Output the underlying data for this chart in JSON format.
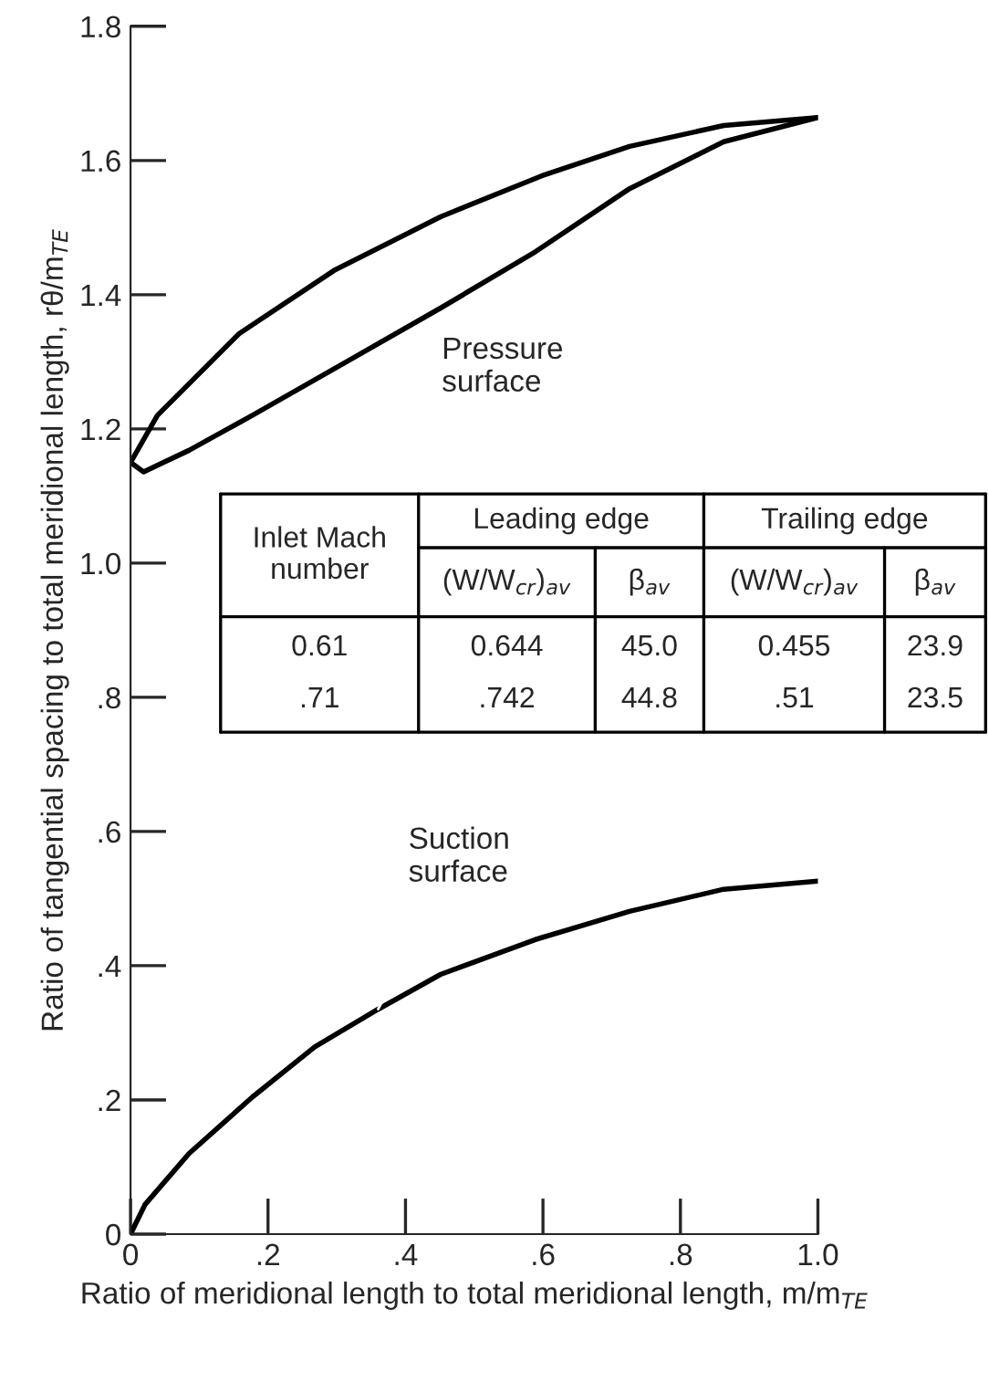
{
  "chart_data": {
    "type": "line",
    "xlabel": "Ratio of meridional length to total meridional length, m/m$_{TE}$",
    "ylabel": "Ratio of tangential spacing to total meridional length, rθ/m$_{TE}$",
    "series": [
      {
        "color": "#000000",
        "x": [
          0,
          0.039,
          0.158,
          0.296,
          0.451,
          0.598,
          0.726,
          0.863,
          1.0
        ],
        "values": [
          1.15,
          1.22,
          1.342,
          1.436,
          1.516,
          1.577,
          1.621,
          1.652,
          1.664
        ]
      },
      {
        "color": "#000000",
        "x": [
          0,
          0.019,
          0.085,
          0.177,
          0.314,
          0.451,
          0.589,
          0.726,
          0.863,
          1.0
        ],
        "values": [
          1.15,
          1.136,
          1.168,
          1.22,
          1.3,
          1.38,
          1.464,
          1.558,
          1.628,
          1.664
        ]
      },
      {
        "color": "#000000",
        "x": [
          0,
          0.021,
          0.085,
          0.177,
          0.268,
          0.36,
          0.451,
          0.589,
          0.726,
          0.863,
          1.0
        ],
        "values": [
          0,
          0.044,
          0.12,
          0.204,
          0.279,
          0.335,
          0.387,
          0.439,
          0.481,
          0.514,
          0.526
        ]
      }
    ],
    "xlim": [
      0,
      1.0
    ],
    "ylim": [
      0,
      1.8
    ],
    "xticks": [
      0,
      {
        "value": 0.2,
        "label": ".2"
      },
      {
        "value": 0.4,
        "label": ".4"
      },
      {
        "value": 0.6,
        "label": ".6"
      },
      {
        "value": 0.8,
        "label": ".8"
      },
      {
        "value": 1.0,
        "label": "1.0"
      }
    ],
    "yticks": [
      0,
      {
        "value": 0.2,
        "label": ".2"
      },
      {
        "value": 0.4,
        "label": ".4"
      },
      {
        "value": 0.6,
        "label": ".6"
      },
      {
        "value": 0.8,
        "label": ".8"
      },
      {
        "value": 1.0,
        "label": "1.0"
      },
      {
        "value": 1.2,
        "label": "1.2"
      },
      {
        "value": 1.4,
        "label": "1.4"
      },
      {
        "value": 1.6,
        "label": "1.6"
      },
      {
        "value": 1.8,
        "label": "1.8"
      }
    ],
    "grid": false,
    "legend": false,
    "annotations": [
      {
        "text": "Pressure\nsurface",
        "x": 0.438,
        "y": 1.36
      },
      {
        "text": "Suction\nsurface",
        "x": 0.36,
        "y": 0.335
      },
      "Inlet Mach\nnumber",
      "Leading edge",
      "Trailing edge",
      "(W/W$_{cr}$)$_{av}$",
      "β$_{av}$",
      "(W/W$_{cr}$)$_{av}$",
      "β$_{av}$",
      "0.61",
      "0.644",
      "45.0",
      "0.455",
      "23.9",
      ".71",
      ".742",
      "44.8",
      ".51",
      "23.5"
    ]
  }
}
